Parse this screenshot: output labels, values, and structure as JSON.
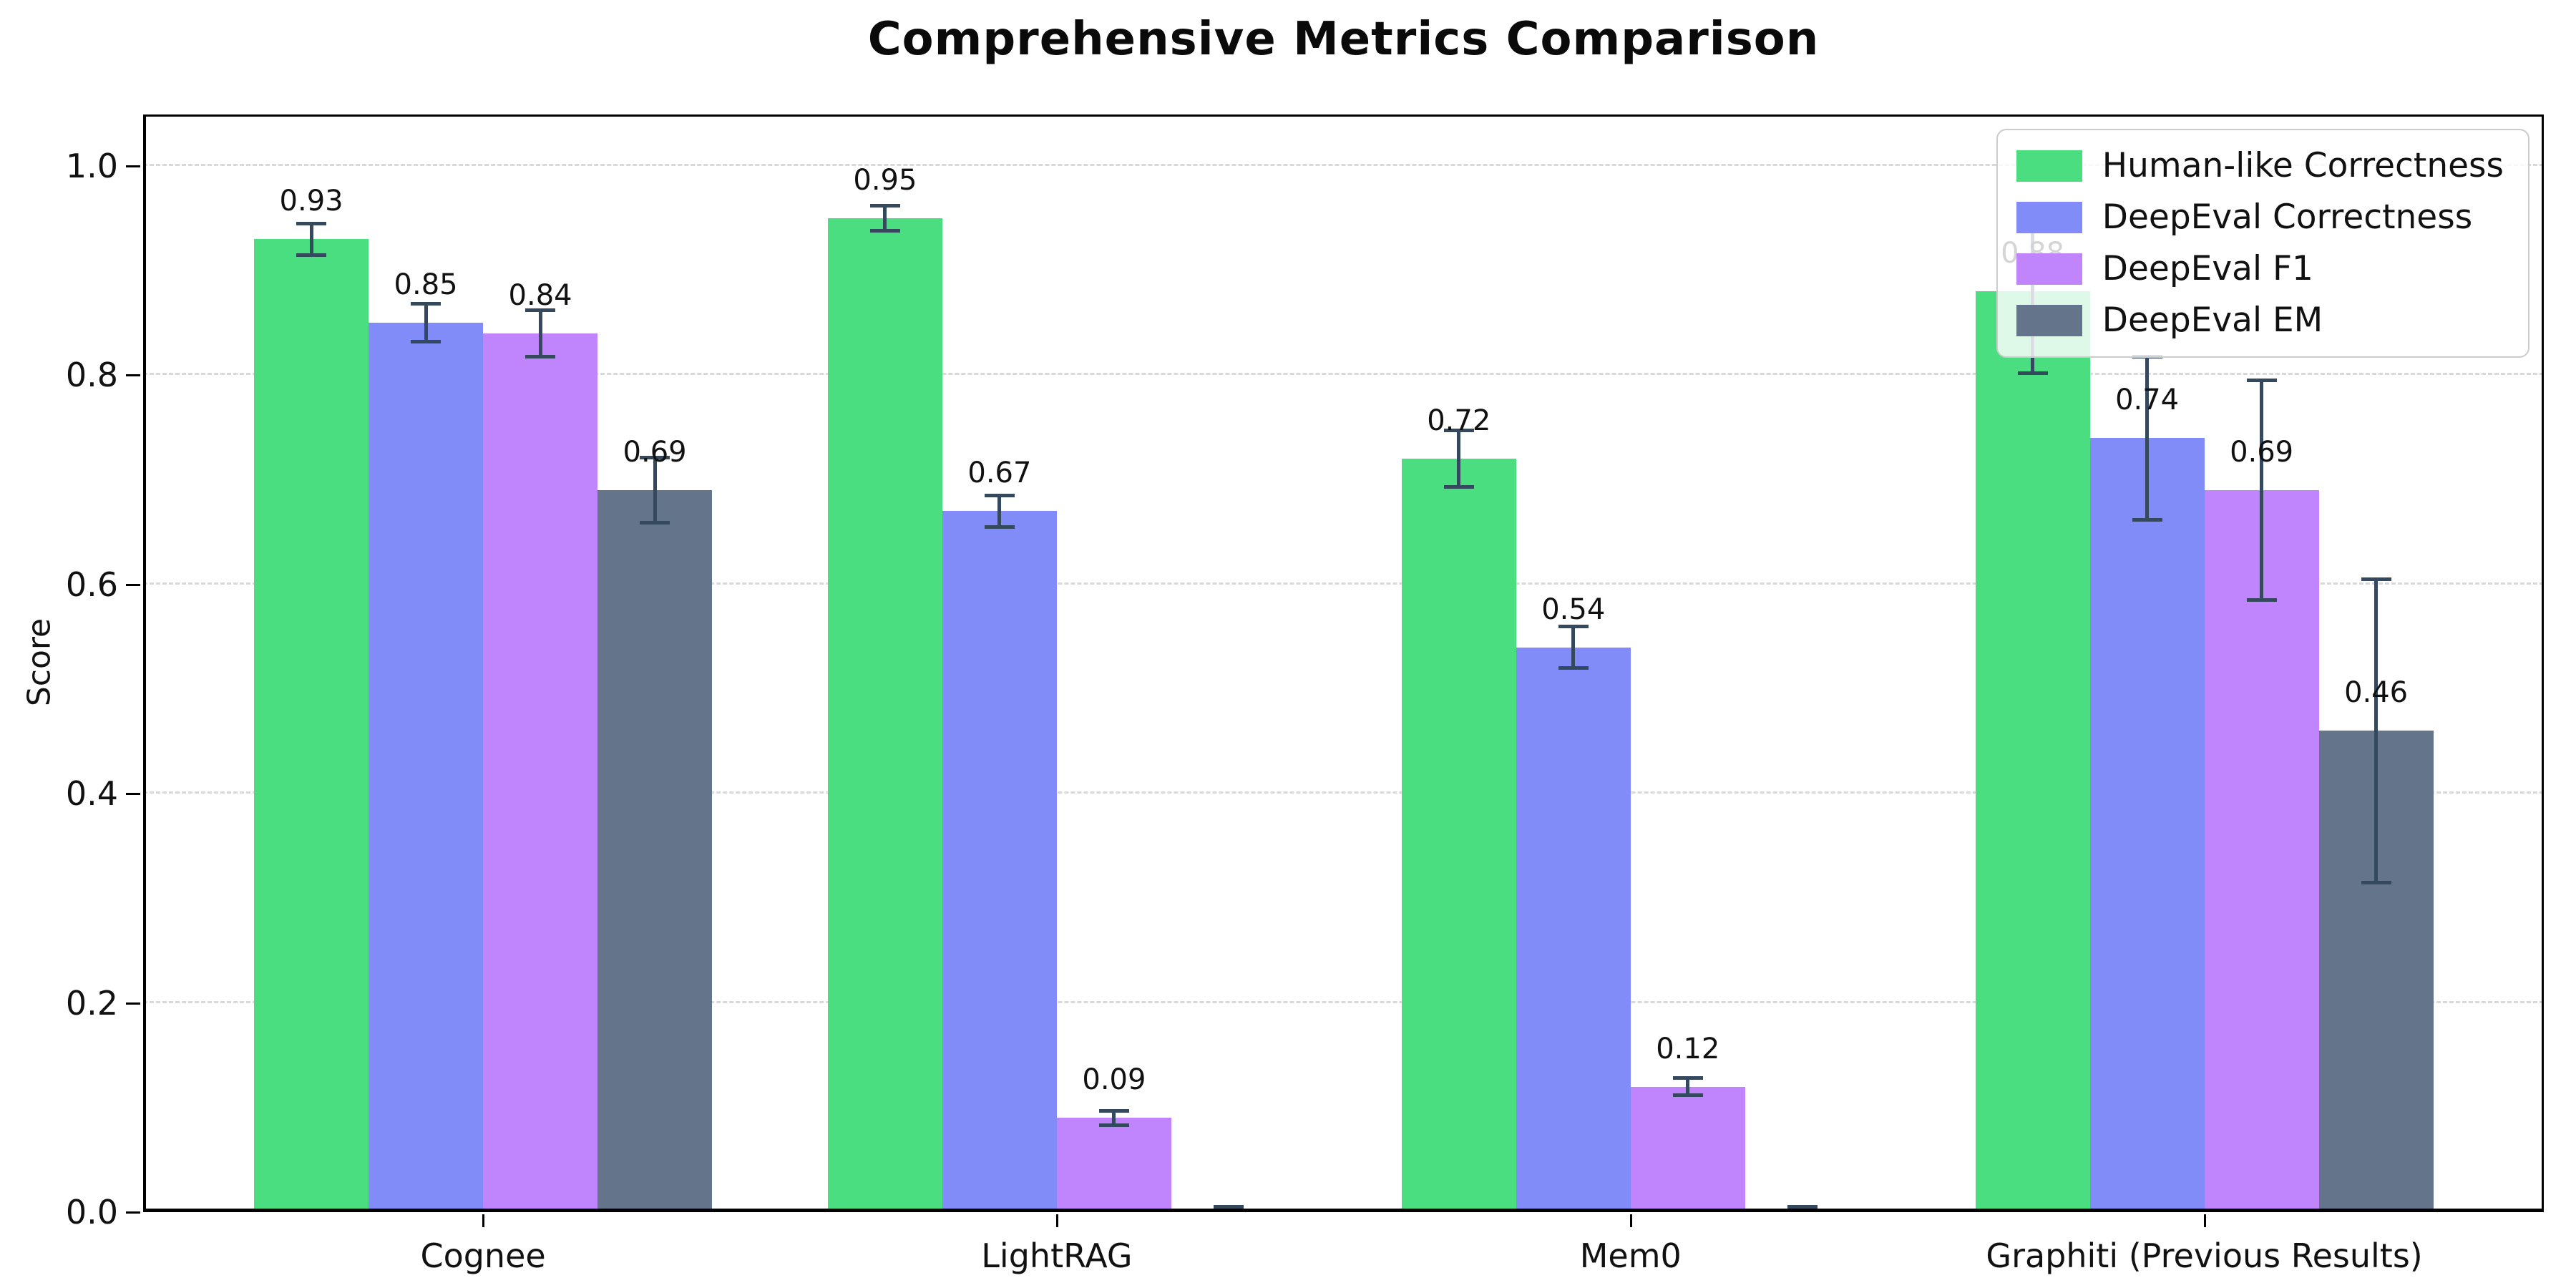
{
  "title": "Comprehensive Metrics Comparison",
  "ylabel": "Score",
  "colors": {
    "background": "#ffffff",
    "axis": "#000000",
    "grid": "#d9d9d9",
    "error_bar": "#34495e",
    "text": "#111111"
  },
  "chart_data": {
    "type": "bar",
    "title": "Comprehensive Metrics Comparison",
    "xlabel": "",
    "ylabel": "Score",
    "categories": [
      "Cognee",
      "LightRAG",
      "Mem0",
      "Graphiti (Previous Results)"
    ],
    "series": [
      {
        "name": "Human-like Correctness",
        "color": "#4ade80",
        "values": [
          0.93,
          0.95,
          0.72,
          0.88
        ],
        "errors": [
          0.015,
          0.012,
          0.027,
          0.078
        ],
        "value_labels": [
          "0.93",
          "0.95",
          "0.72",
          "0.88"
        ]
      },
      {
        "name": "DeepEval Correctness",
        "color": "#818cf8",
        "values": [
          0.85,
          0.67,
          0.54,
          0.74
        ],
        "errors": [
          0.018,
          0.015,
          0.02,
          0.078
        ],
        "value_labels": [
          "0.85",
          "0.67",
          "0.54",
          "0.74"
        ]
      },
      {
        "name": "DeepEval F1",
        "color": "#c084fc",
        "values": [
          0.84,
          0.09,
          0.12,
          0.69
        ],
        "errors": [
          0.022,
          0.007,
          0.008,
          0.105
        ],
        "value_labels": [
          "0.84",
          "0.09",
          "0.12",
          "0.69"
        ]
      },
      {
        "name": "DeepEval EM",
        "color": "#64748b",
        "values": [
          0.69,
          0.0,
          0.0,
          0.46
        ],
        "errors": [
          0.031,
          0.005,
          0.005,
          0.145
        ],
        "value_labels": [
          "0.69",
          "",
          "",
          "0.46"
        ]
      }
    ],
    "yticks": [
      0.0,
      0.2,
      0.4,
      0.6,
      0.8,
      1.0
    ],
    "ytick_labels": [
      "0.0",
      "0.2",
      "0.4",
      "0.6",
      "0.8",
      "1.0"
    ],
    "ylim": [
      0,
      1.05
    ],
    "grid": {
      "axis": "y",
      "style": "dashed",
      "color": "#d9d9d9"
    },
    "legend_position": "upper right",
    "error_bars": true
  }
}
